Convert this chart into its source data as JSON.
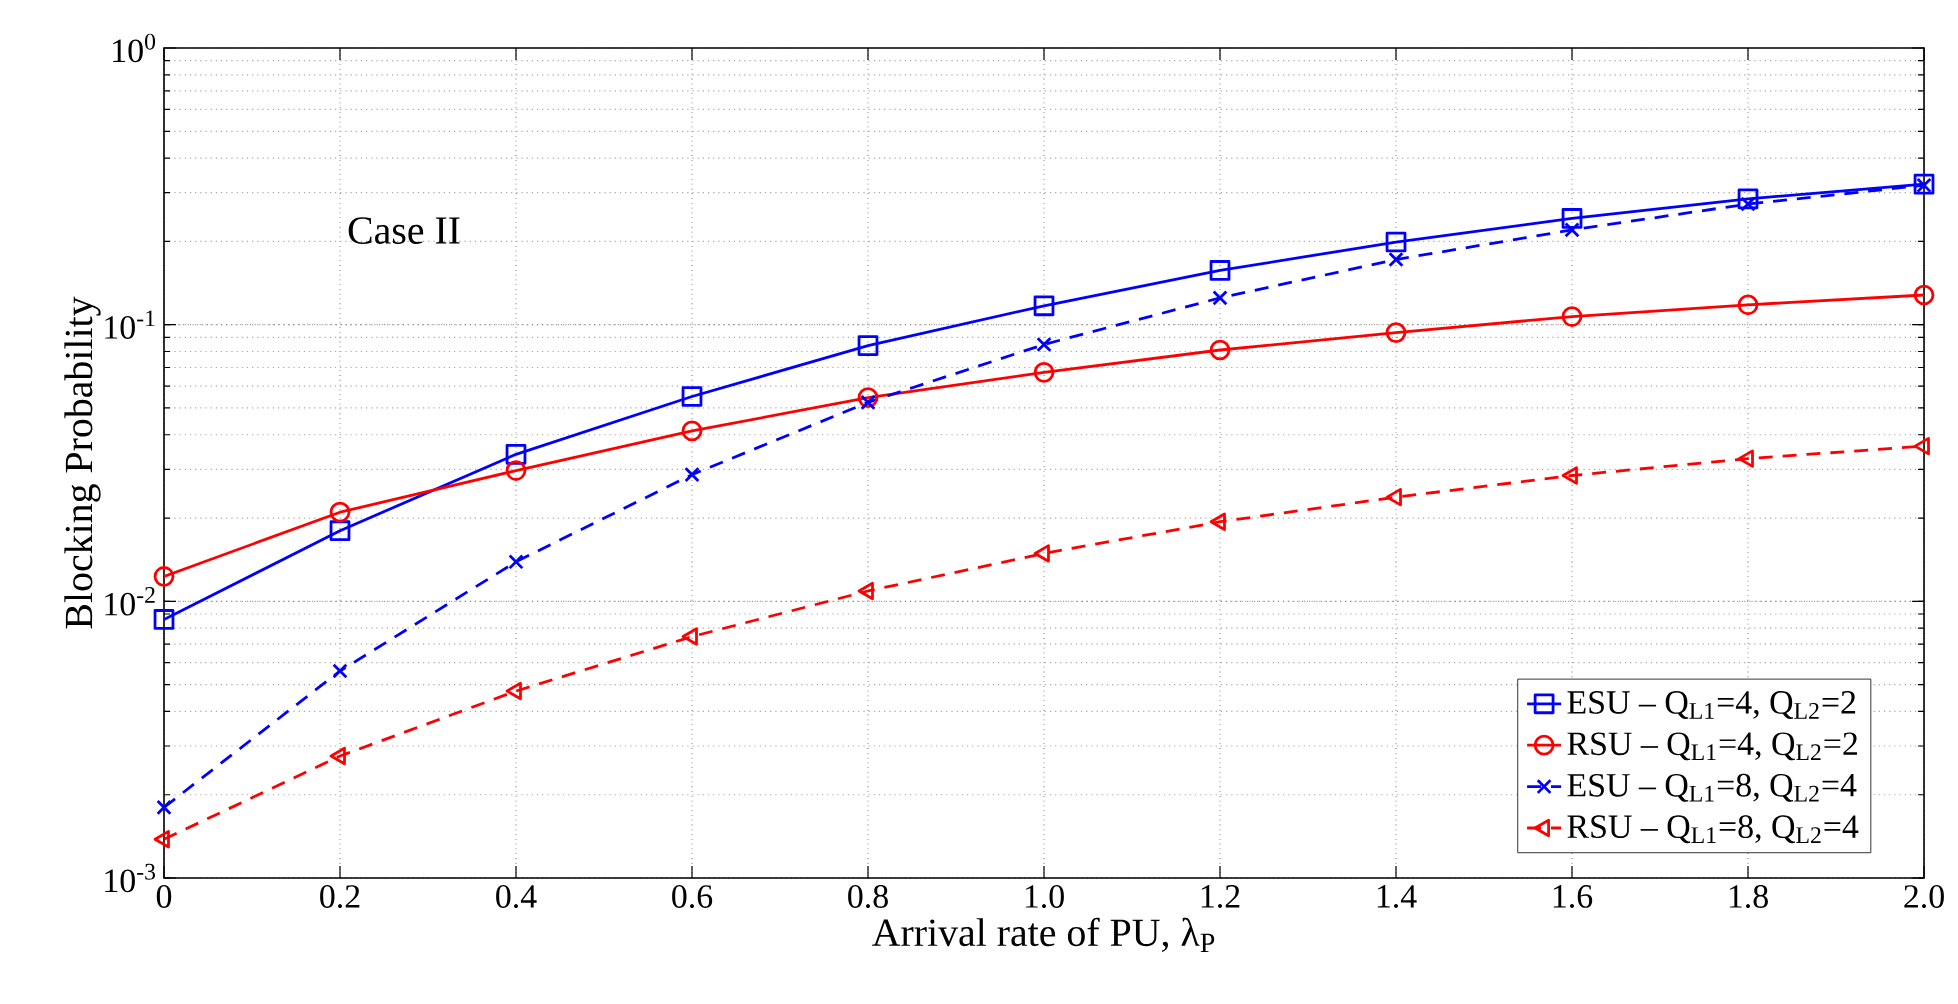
{
  "chart_data": {
    "type": "line",
    "xlabel": "Arrival rate of PU, λ$_{P}$",
    "ylabel": "Blocking Probability",
    "annotations": [
      "Case II"
    ],
    "x": [
      0,
      0.2,
      0.4,
      0.6,
      0.8,
      1.0,
      1.2,
      1.4,
      1.6,
      1.8,
      2.0
    ],
    "series": [
      {
        "name": "ESU  – Q$_{L1}$=4,  Q$_{L2}$=2",
        "color": "#0000ff",
        "marker": "square",
        "line_style": "solid",
        "values": [
          0.0086,
          0.018,
          0.034,
          0.055,
          0.084,
          0.117,
          0.157,
          0.199,
          0.242,
          0.285,
          0.322
        ]
      },
      {
        "name": "RSU  – Q$_{L1}$=4,  Q$_{L2}$=2",
        "color": "#ff0000",
        "marker": "circle",
        "line_style": "solid",
        "values": [
          0.0123,
          0.021,
          0.0297,
          0.0413,
          0.0545,
          0.0672,
          0.081,
          0.0936,
          0.107,
          0.118,
          0.128
        ]
      },
      {
        "name": "ESU  – Q$_{L1}$=8,  Q$_{L2}$=4",
        "color": "#0000ff",
        "marker": "cross",
        "line_style": "dashed",
        "values": [
          0.0018,
          0.0056,
          0.0139,
          0.0287,
          0.0524,
          0.0848,
          0.125,
          0.172,
          0.22,
          0.273,
          0.319
        ]
      },
      {
        "name": "RSU  – Q$_{L1}$=8,  Q$_{L2}$=4",
        "color": "#ff0000",
        "marker": "triangle",
        "line_style": "dashed",
        "values": [
          0.00138,
          0.00276,
          0.00474,
          0.00746,
          0.0109,
          0.0149,
          0.0194,
          0.0238,
          0.0285,
          0.0328,
          0.0364
        ]
      }
    ],
    "log": "y",
    "grid": true,
    "legend": "bottom right",
    "xlim": [
      0,
      2
    ],
    "ylim": [
      0.001,
      1
    ],
    "xticks": [
      {
        "value": 0,
        "label": "0"
      },
      {
        "value": 0.2,
        "label": "0.2"
      },
      {
        "value": 0.4,
        "label": "0.4"
      },
      {
        "value": 0.6,
        "label": "0.6"
      },
      {
        "value": 0.8,
        "label": "0.8"
      },
      {
        "value": 1,
        "label": "1.0"
      },
      {
        "value": 1.2,
        "label": "1.2"
      },
      {
        "value": 1.4,
        "label": "1.4"
      },
      {
        "value": 1.6,
        "label": "1.6"
      },
      {
        "value": 1.8,
        "label": "1.8"
      },
      {
        "value": 2,
        "label": "2.0"
      }
    ],
    "yticks": [
      {
        "value": 0.001,
        "label": "10$^{-3}$"
      },
      {
        "value": 0.01,
        "label": "10$^{-2}$"
      },
      {
        "value": 0.1,
        "label": "10$^{-1}$"
      },
      {
        "value": 1,
        "label": "10$^{0}$"
      }
    ]
  }
}
